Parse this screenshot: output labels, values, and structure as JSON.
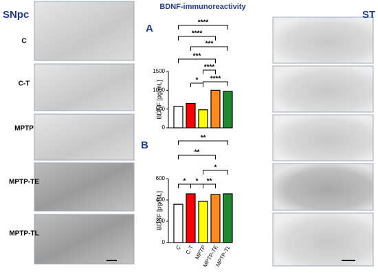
{
  "title": "BDNF-immunoreactivity",
  "left_label": "SNpc",
  "right_label": "ST",
  "rows": [
    "C",
    "C-T",
    "MPTP",
    "MPTP-TE",
    "MPTP-TL"
  ],
  "chart_data": [
    {
      "type": "bar",
      "panel": "A",
      "y_label": "BDNF [pg/mL]",
      "categories": [
        null,
        null,
        null,
        null,
        null
      ],
      "values": [
        570,
        650,
        480,
        1000,
        970
      ],
      "colors": [
        "#ffffff",
        "#ff0000",
        "#ffff00",
        "#ff8c1a",
        "#1e8c2e"
      ],
      "ylim": [
        0,
        1500
      ],
      "yticks": [
        0,
        500,
        1000,
        1500
      ],
      "annotations": [
        "****",
        "****",
        "***",
        "***",
        "****",
        "*",
        "****"
      ]
    },
    {
      "type": "bar",
      "panel": "B",
      "y_label": "BDNF [pg/mL]",
      "categories": [
        "C",
        "C-T",
        "MPTP",
        "MPTP-TE",
        "MPTP-TL"
      ],
      "values": [
        360,
        458,
        387,
        452,
        458
      ],
      "colors": [
        "#ffffff",
        "#ff0000",
        "#ffff00",
        "#ff8c1a",
        "#1e8c2e"
      ],
      "ylim": [
        0,
        600
      ],
      "yticks": [
        0,
        200,
        400,
        600
      ],
      "annotations": [
        "**",
        "**",
        "*",
        "*",
        "*",
        "**"
      ]
    }
  ]
}
